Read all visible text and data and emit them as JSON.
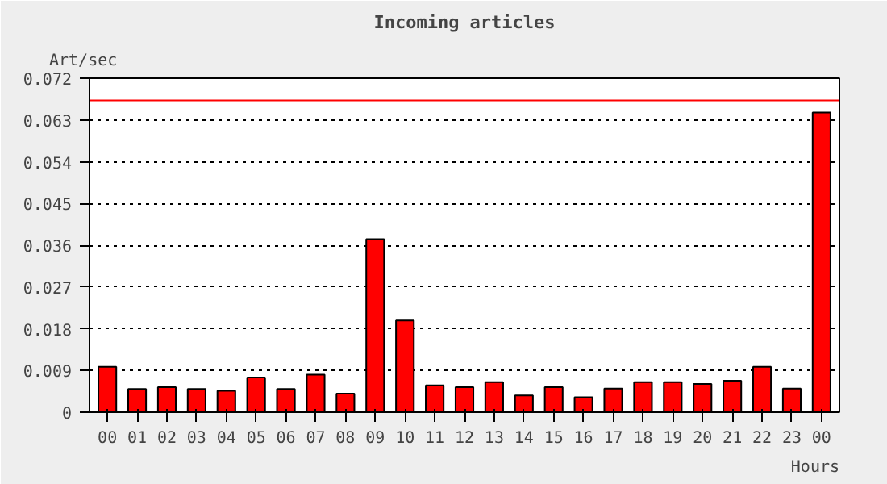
{
  "chart_data": {
    "type": "bar",
    "title": "Incoming articles",
    "ylabel": "Art/sec",
    "xlabel": "Hours",
    "categories": [
      "00",
      "01",
      "02",
      "03",
      "04",
      "05",
      "06",
      "07",
      "08",
      "09",
      "10",
      "11",
      "12",
      "13",
      "14",
      "15",
      "16",
      "17",
      "18",
      "19",
      "20",
      "21",
      "22",
      "23",
      "00"
    ],
    "values": [
      0.0098,
      0.005,
      0.0054,
      0.005,
      0.0046,
      0.0075,
      0.005,
      0.0081,
      0.004,
      0.0373,
      0.0198,
      0.0058,
      0.0054,
      0.0065,
      0.0036,
      0.0054,
      0.0032,
      0.0051,
      0.0065,
      0.0065,
      0.0061,
      0.0068,
      0.0098,
      0.0051,
      0.0646
    ],
    "color": "#ff0000",
    "ylim": [
      0,
      0.072
    ],
    "yticks": [
      0,
      0.009,
      0.018,
      0.027,
      0.036,
      0.045,
      0.054,
      0.063,
      0.072
    ],
    "grid": "y",
    "ref_lines": [
      {
        "axis": "y",
        "value": 0.0672,
        "color": "#ff0000"
      }
    ]
  }
}
